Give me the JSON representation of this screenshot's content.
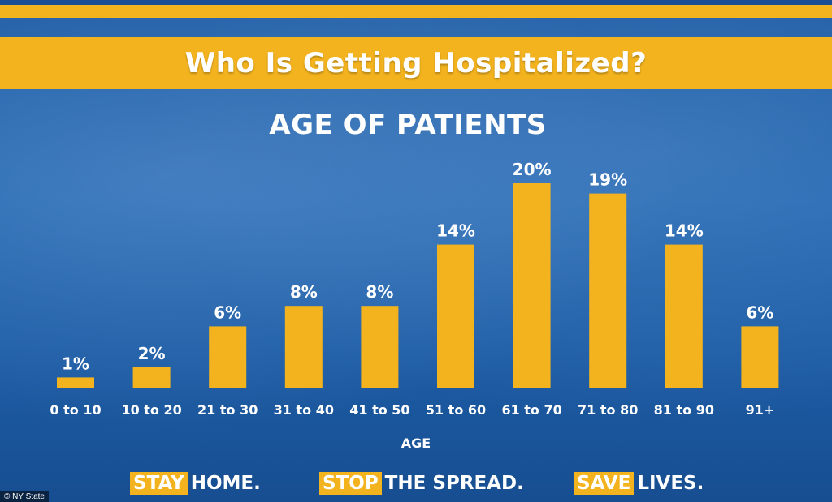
{
  "banner": {
    "title": "Who Is Getting Hospitalized?"
  },
  "chart_data": {
    "type": "bar",
    "title": "AGE OF PATIENTS",
    "xlabel": "AGE",
    "ylabel": "",
    "categories": [
      "0 to 10",
      "10 to 20",
      "21 to 30",
      "31 to 40",
      "41 to 50",
      "51 to 60",
      "61 to 70",
      "71 to 80",
      "81 to 90",
      "91+"
    ],
    "values": [
      1,
      2,
      6,
      8,
      8,
      14,
      20,
      19,
      14,
      6
    ],
    "data_labels": [
      "1%",
      "2%",
      "6%",
      "8%",
      "8%",
      "14%",
      "20%",
      "19%",
      "14%",
      "6%"
    ],
    "ylim": [
      0,
      20
    ],
    "grid": false,
    "bar_color": "#f3b31e"
  },
  "footer": {
    "part1_highlight": "STAY",
    "part1_text": "HOME.",
    "part2_highlight": "STOP",
    "part2_text": "THE SPREAD.",
    "part3_highlight": "SAVE",
    "part3_text": "LIVES."
  },
  "credit": "© NY State",
  "colors": {
    "accent": "#f3b31e",
    "background": "#1d5ea6",
    "text": "#ffffff"
  }
}
